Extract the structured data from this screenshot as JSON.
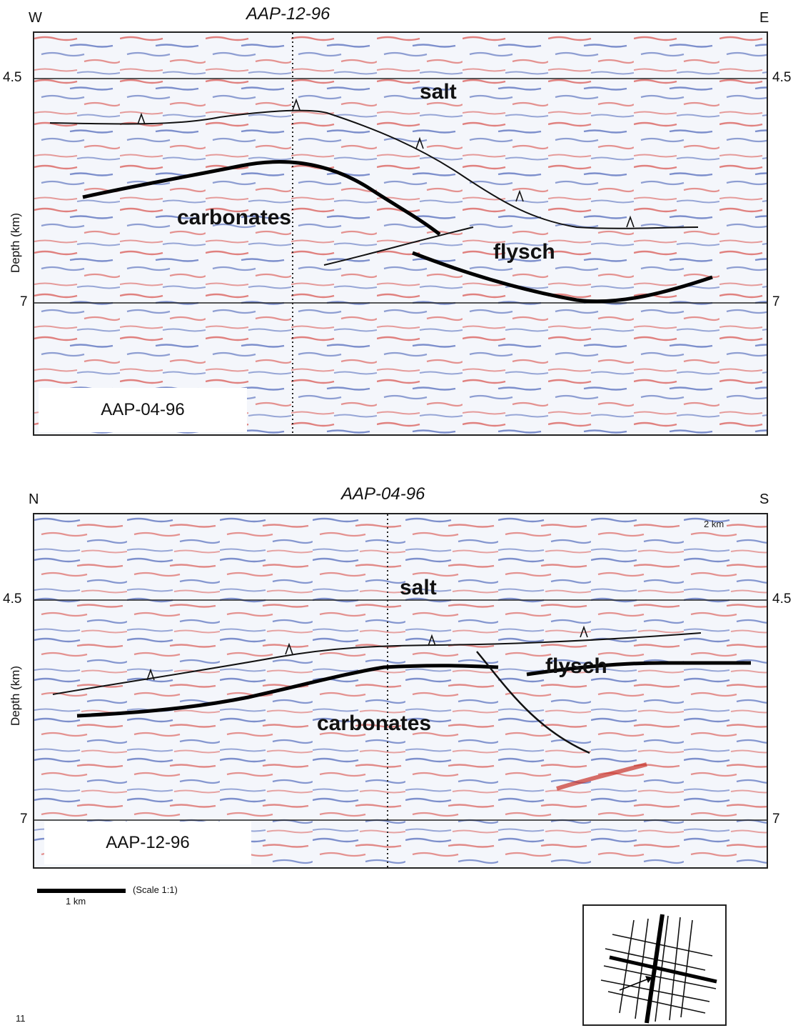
{
  "top_panel": {
    "left_dir": "W",
    "right_dir": "E",
    "crossing_line": "AAP-12-96",
    "line_name_box": "AAP-04-96",
    "y_axis_title": "Depth (km)",
    "tick_upper": "4.5",
    "tick_lower": "7",
    "labels": {
      "salt": "salt",
      "carbonates": "carbonates",
      "flysch": "flysch"
    }
  },
  "bottom_panel": {
    "left_dir": "N",
    "right_dir": "S",
    "crossing_line": "AAP-04-96",
    "line_name_box": "AAP-12-96",
    "y_axis_title": "Depth (km)",
    "tick_upper": "4.5",
    "tick_lower": "7",
    "corner_note": "2 km",
    "labels": {
      "salt": "salt",
      "carbonates": "carbonates",
      "flysch": "flysch"
    }
  },
  "scale": {
    "bar_label": "1 km",
    "note": "(Scale 1:1)"
  },
  "page_number": "11",
  "colors": {
    "red": "#d8504a",
    "blue": "#4a64b8",
    "bg": "#f4f6fb"
  },
  "icons": {
    "location_map": "location-map-icon"
  }
}
